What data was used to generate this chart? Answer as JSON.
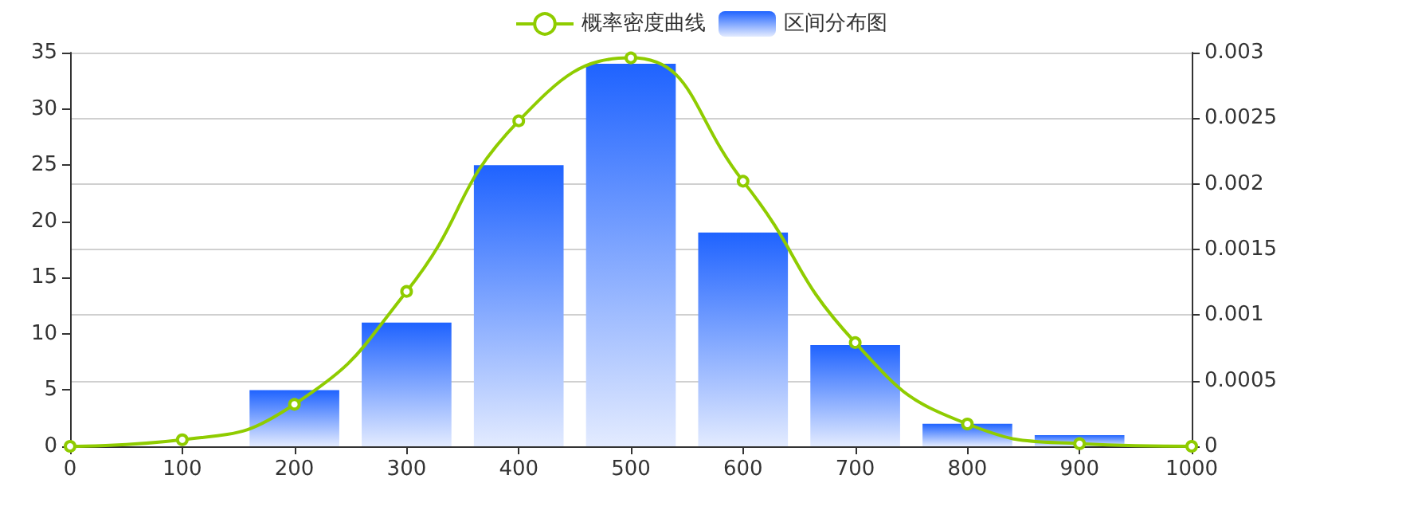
{
  "chart_data": {
    "type": "bar",
    "series": [
      {
        "name": "区间分布图",
        "color": "#1f63ff",
        "x": [
          200,
          300,
          400,
          500,
          600,
          700,
          800,
          900
        ],
        "values": [
          5,
          11,
          25,
          34,
          19,
          9,
          2,
          1
        ]
      },
      {
        "name": "概率密度曲线",
        "type": "line",
        "axis": "y2",
        "color": "#8fcc00",
        "x": [
          0,
          100,
          200,
          300,
          400,
          500,
          600,
          700,
          800,
          900,
          1000
        ],
        "values": [
          0,
          5e-05,
          0.00032,
          0.00118,
          0.00248,
          0.00296,
          0.00202,
          0.00079,
          0.00017,
          2e-05,
          0
        ]
      }
    ],
    "xlim": [
      0,
      1000
    ],
    "xticks": [
      0,
      100,
      200,
      300,
      400,
      500,
      600,
      700,
      800,
      900,
      1000
    ],
    "ylim": [
      0,
      35
    ],
    "yticks": [
      0,
      5,
      10,
      15,
      20,
      25,
      30,
      35
    ],
    "y2lim": [
      0,
      0.003
    ],
    "y2ticks": [
      0,
      0.0005,
      0.001,
      0.0015,
      0.002,
      0.0025,
      0.003
    ],
    "grid": "y",
    "legend": "top",
    "marker": "circle",
    "line_style": "solid"
  }
}
